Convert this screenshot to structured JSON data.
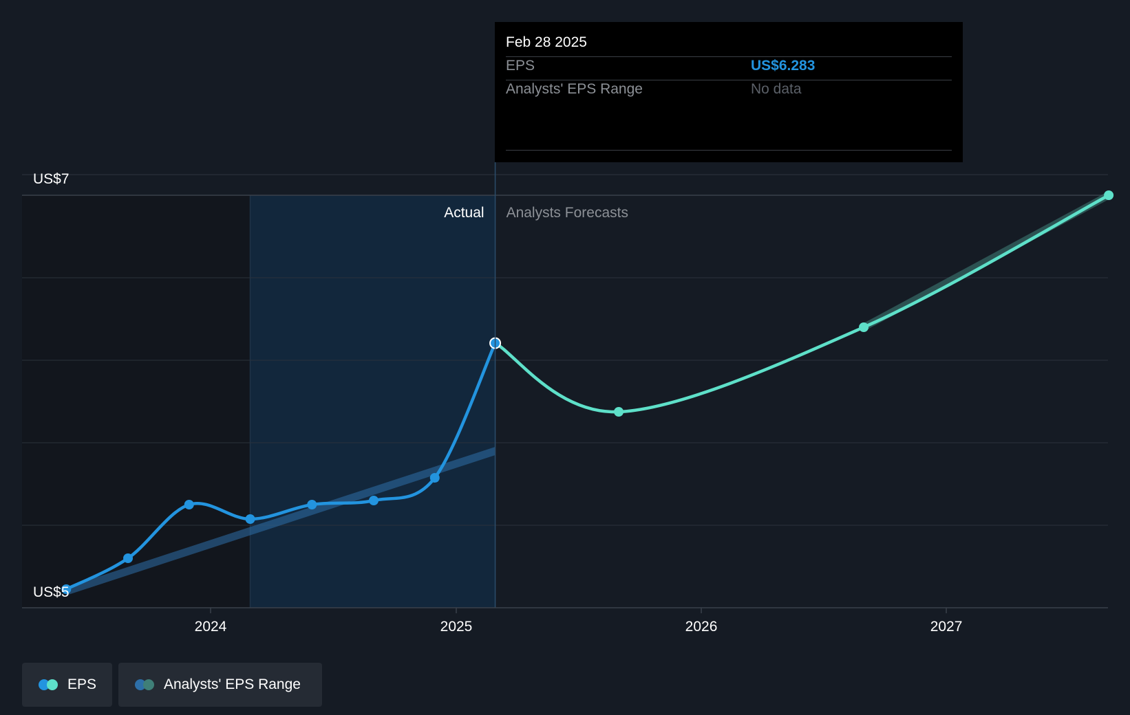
{
  "chart_data": {
    "type": "line",
    "x_ticks": [
      "2024",
      "2025",
      "2026",
      "2027"
    ],
    "y_labels": {
      "top": "US$7",
      "bottom": "US$5"
    },
    "ylim": [
      5,
      7
    ],
    "section_labels": {
      "actual": "Actual",
      "forecast": "Analysts Forecasts"
    },
    "series": [
      {
        "name": "EPS",
        "kind": "actual",
        "color": "#2394df",
        "points": [
          {
            "date": "2023-05-31",
            "value": 5.09
          },
          {
            "date": "2023-08-31",
            "value": 5.24
          },
          {
            "date": "2023-11-30",
            "value": 5.5
          },
          {
            "date": "2024-02-29",
            "value": 5.43
          },
          {
            "date": "2024-05-31",
            "value": 5.5
          },
          {
            "date": "2024-08-31",
            "value": 5.52
          },
          {
            "date": "2024-11-30",
            "value": 5.63
          },
          {
            "date": "2025-02-28",
            "value": 6.283
          }
        ]
      },
      {
        "name": "EPS",
        "kind": "forecast",
        "color": "#5ee0c9",
        "points": [
          {
            "date": "2025-02-28",
            "value": 6.283
          },
          {
            "date": "2025-08-31",
            "value": 5.95
          },
          {
            "date": "2026-08-31",
            "value": 6.36
          },
          {
            "date": "2027-08-31",
            "value": 7.0
          }
        ]
      },
      {
        "name": "Analysts' EPS Range",
        "kind": "range",
        "color": "#2d6fa8",
        "points": [
          {
            "date": "2023-05-31",
            "low": 5.06,
            "high": 5.1
          },
          {
            "date": "2025-02-28",
            "low": 5.74,
            "high": 5.78
          }
        ]
      },
      {
        "name": "Analysts' EPS Range",
        "kind": "range",
        "color": "#3f7f78",
        "points": [
          {
            "date": "2026-08-31",
            "low": 6.34,
            "high": 6.38
          },
          {
            "date": "2027-08-31",
            "low": 6.98,
            "high": 7.02
          }
        ]
      }
    ]
  },
  "tooltip": {
    "date": "Feb 28 2025",
    "eps_label": "EPS",
    "eps_value": "US$6.283",
    "range_label": "Analysts' EPS Range",
    "range_value": "No data"
  },
  "legend": {
    "eps": "EPS",
    "range": "Analysts' EPS Range"
  },
  "colors": {
    "background": "#151b24",
    "eps_actual": "#2394df",
    "eps_forecast": "#5ee0c9",
    "range_actual": "#2d6fa8",
    "range_forecast": "#3f7f78",
    "highlight": "#112a42"
  }
}
